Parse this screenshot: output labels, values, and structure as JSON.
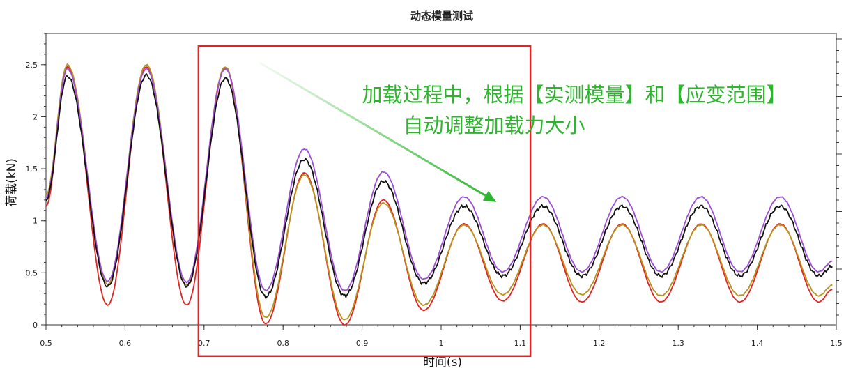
{
  "chart_data": {
    "type": "line",
    "title": "动态模量测试",
    "xlabel": "时间(s)",
    "ylabel": "荷载(kN)",
    "xlim": [
      0.5,
      1.5
    ],
    "ylim": [
      0,
      2.8
    ],
    "xticks": [
      "0.5",
      "0.6",
      "0.7",
      "0.8",
      "0.9",
      "1",
      "1.1",
      "1.2",
      "1.3",
      "1.4",
      "1.5"
    ],
    "yticks": [
      "0",
      "0.5",
      "1",
      "1.5",
      "2",
      "2.5"
    ],
    "grid": false,
    "legend": "none",
    "cycle_period_s": 0.1,
    "series": [
      {
        "color": "#e02424",
        "peaks": [
          [
            0.527,
            2.48
          ],
          [
            0.627,
            2.48
          ],
          [
            0.727,
            2.47
          ],
          [
            0.827,
            1.46
          ],
          [
            0.927,
            1.2
          ],
          [
            1.029,
            0.97
          ],
          [
            1.129,
            0.97
          ],
          [
            1.229,
            0.97
          ],
          [
            1.329,
            0.97
          ],
          [
            1.429,
            0.97
          ]
        ],
        "valleys": [
          [
            0.5,
            1.14
          ],
          [
            0.578,
            0.19
          ],
          [
            0.678,
            0.19
          ],
          [
            0.778,
            0.01
          ],
          [
            0.878,
            0.0
          ],
          [
            0.978,
            0.14
          ],
          [
            1.078,
            0.23
          ],
          [
            1.178,
            0.22
          ],
          [
            1.278,
            0.22
          ],
          [
            1.378,
            0.22
          ],
          [
            1.478,
            0.22
          ],
          [
            1.495,
            0.34
          ]
        ]
      },
      {
        "color": "#b8941c",
        "peaks": [
          [
            0.527,
            2.5
          ],
          [
            0.627,
            2.5
          ],
          [
            0.727,
            2.48
          ],
          [
            0.827,
            1.44
          ],
          [
            0.927,
            1.17
          ],
          [
            1.029,
            0.96
          ],
          [
            1.129,
            0.96
          ],
          [
            1.229,
            0.96
          ],
          [
            1.329,
            0.96
          ],
          [
            1.429,
            0.96
          ]
        ],
        "valleys": [
          [
            0.5,
            1.25
          ],
          [
            0.578,
            0.39
          ],
          [
            0.678,
            0.38
          ],
          [
            0.778,
            0.07
          ],
          [
            0.878,
            0.05
          ],
          [
            0.978,
            0.19
          ],
          [
            1.078,
            0.29
          ],
          [
            1.178,
            0.29
          ],
          [
            1.278,
            0.28
          ],
          [
            1.378,
            0.28
          ],
          [
            1.478,
            0.28
          ],
          [
            1.495,
            0.38
          ]
        ]
      },
      {
        "color": "#9b4fd6",
        "peaks": [
          [
            0.527,
            2.46
          ],
          [
            0.627,
            2.46
          ],
          [
            0.727,
            2.46
          ],
          [
            0.827,
            1.69
          ],
          [
            0.927,
            1.47
          ],
          [
            1.029,
            1.23
          ],
          [
            1.129,
            1.23
          ],
          [
            1.229,
            1.23
          ],
          [
            1.329,
            1.23
          ],
          [
            1.429,
            1.23
          ]
        ],
        "valleys": [
          [
            0.5,
            1.22
          ],
          [
            0.578,
            0.42
          ],
          [
            0.678,
            0.41
          ],
          [
            0.778,
            0.33
          ],
          [
            0.878,
            0.33
          ],
          [
            0.978,
            0.44
          ],
          [
            1.078,
            0.51
          ],
          [
            1.178,
            0.51
          ],
          [
            1.278,
            0.51
          ],
          [
            1.378,
            0.51
          ],
          [
            1.478,
            0.51
          ],
          [
            1.495,
            0.61
          ]
        ]
      },
      {
        "color": "#111111",
        "peaks": [
          [
            0.527,
            2.39
          ],
          [
            0.627,
            2.4
          ],
          [
            0.727,
            2.37
          ],
          [
            0.827,
            1.59
          ],
          [
            0.927,
            1.38
          ],
          [
            1.029,
            1.14
          ],
          [
            1.129,
            1.14
          ],
          [
            1.229,
            1.14
          ],
          [
            1.329,
            1.14
          ],
          [
            1.429,
            1.14
          ]
        ],
        "valleys": [
          [
            0.5,
            1.2
          ],
          [
            0.578,
            0.37
          ],
          [
            0.678,
            0.37
          ],
          [
            0.778,
            0.27
          ],
          [
            0.878,
            0.28
          ],
          [
            0.978,
            0.4
          ],
          [
            1.078,
            0.47
          ],
          [
            1.178,
            0.47
          ],
          [
            1.278,
            0.47
          ],
          [
            1.378,
            0.47
          ],
          [
            1.478,
            0.47
          ],
          [
            1.495,
            0.56
          ]
        ]
      }
    ],
    "annotation": {
      "lines": [
        "加载过程中，根据【实测模量】和【应变范围】",
        "自动调整加载力大小"
      ],
      "color": "#2db52d",
      "arrow_from": [
        0.77,
        2.52
      ],
      "arrow_to": [
        1.07,
        1.18
      ],
      "highlight_box": {
        "color": "#e02424",
        "x_range": [
          0.693,
          1.113
        ],
        "y_range": [
          -0.3,
          2.68
        ]
      }
    }
  }
}
